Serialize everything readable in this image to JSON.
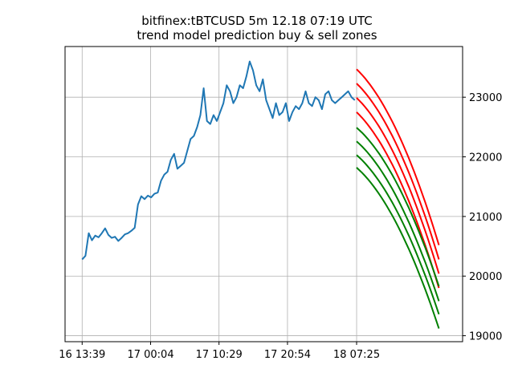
{
  "chart_data": {
    "type": "line",
    "title": "bitfinex:tBTCUSD 5m 12.18 07:19 UTC",
    "subtitle": "trend model prediction buy & sell zones",
    "xlabel": "",
    "ylabel": "",
    "x_ticks": [
      "16 13:39",
      "17 00:04",
      "17 10:29",
      "17 20:54",
      "18 07:25"
    ],
    "x_tick_hours": [
      0,
      10.42,
      20.83,
      31.25,
      41.77
    ],
    "xlim": [
      -2.6,
      57.9
    ],
    "y_ticks": [
      19000,
      20000,
      21000,
      22000,
      23000
    ],
    "ylim": [
      18900,
      23850
    ],
    "y_axis_side": "right",
    "grid": true,
    "colors": {
      "price": "#1f77b4",
      "sell_zone": "#ff0000",
      "buy_zone": "#008000",
      "grid": "#b0b0b0",
      "axis": "#000000"
    },
    "price_series": {
      "x_hours": [
        0,
        0.5,
        1,
        1.5,
        2,
        2.5,
        3,
        3.5,
        4,
        4.5,
        5,
        5.5,
        6,
        6.5,
        7,
        7.5,
        8,
        8.5,
        9,
        9.5,
        10,
        10.5,
        11,
        11.5,
        12,
        12.5,
        13,
        13.5,
        14,
        14.5,
        15,
        15.5,
        16,
        16.5,
        17,
        17.5,
        18,
        18.5,
        19,
        19.5,
        20,
        20.5,
        21,
        21.5,
        22,
        22.5,
        23,
        23.5,
        24,
        24.5,
        25,
        25.5,
        26,
        26.5,
        27,
        27.5,
        28,
        28.5,
        29,
        29.5,
        30,
        30.5,
        31,
        31.5,
        32,
        32.5,
        33,
        33.5,
        34,
        34.5,
        35,
        35.5,
        36,
        36.5,
        37,
        37.5,
        38,
        38.5,
        39,
        39.5,
        40,
        40.5,
        41,
        41.5
      ],
      "values": [
        20280,
        20340,
        20720,
        20600,
        20680,
        20650,
        20720,
        20800,
        20690,
        20640,
        20660,
        20590,
        20640,
        20700,
        20720,
        20760,
        20810,
        21200,
        21340,
        21290,
        21350,
        21320,
        21380,
        21400,
        21600,
        21700,
        21750,
        21950,
        22050,
        21800,
        21850,
        21900,
        22100,
        22300,
        22350,
        22500,
        22700,
        23150,
        22600,
        22550,
        22700,
        22600,
        22750,
        22900,
        23200,
        23100,
        22900,
        23000,
        23200,
        23150,
        23350,
        23600,
        23450,
        23200,
        23100,
        23300,
        22950,
        22800,
        22650,
        22900,
        22700,
        22750,
        22900,
        22600,
        22750,
        22850,
        22800,
        22900,
        23100,
        22900,
        22850,
        23000,
        22950,
        22800,
        23050,
        23100,
        22950,
        22900,
        22950,
        23000,
        23050,
        23100,
        23000,
        22950
      ]
    },
    "prediction_zones": {
      "x_start": 41.77,
      "x_end": 54.3,
      "sell_start": [
        23470,
        23230,
        22990,
        22750
      ],
      "sell_end": [
        20520,
        20280,
        20040,
        19800
      ],
      "buy_start": [
        22490,
        22260,
        22030,
        21820
      ],
      "buy_end": [
        19830,
        19580,
        19360,
        19120
      ]
    }
  }
}
